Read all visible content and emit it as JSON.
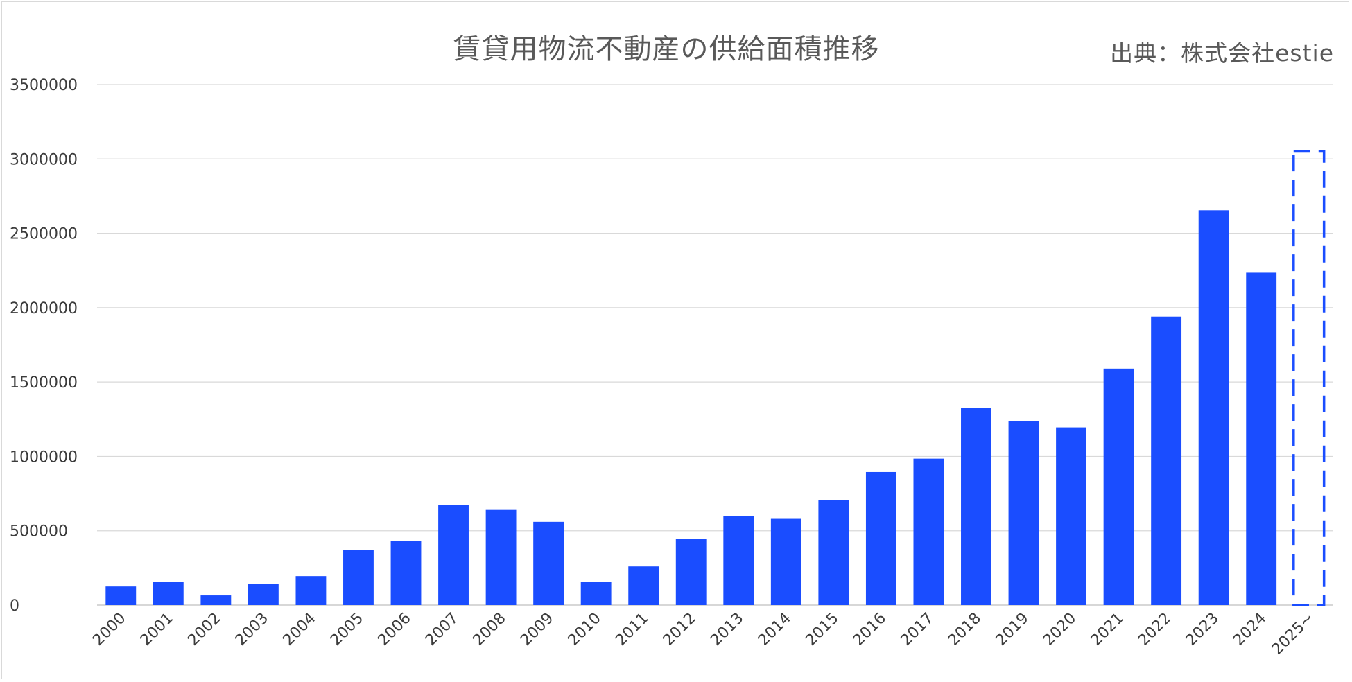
{
  "title": "賃貸用物流不動産の供給面積推移",
  "source": "出典：株式会社estie",
  "chart_data": {
    "type": "bar",
    "categories": [
      "2000",
      "2001",
      "2002",
      "2003",
      "2004",
      "2005",
      "2006",
      "2007",
      "2008",
      "2009",
      "2010",
      "2011",
      "2012",
      "2013",
      "2014",
      "2015",
      "2016",
      "2017",
      "2018",
      "2019",
      "2020",
      "2021",
      "2022",
      "2023",
      "2024",
      "2025~"
    ],
    "values": [
      125000,
      155000,
      65000,
      140000,
      195000,
      370000,
      430000,
      675000,
      640000,
      560000,
      155000,
      260000,
      445000,
      600000,
      580000,
      705000,
      895000,
      985000,
      1325000,
      1235000,
      1195000,
      1590000,
      1940000,
      2655000,
      2235000,
      3050000
    ],
    "highlight": {
      "category": "2025~",
      "style": "dashed-outline",
      "value": 3050000
    },
    "ylim": [
      0,
      3500000
    ],
    "yticks": [
      0,
      500000,
      1000000,
      1500000,
      2000000,
      2500000,
      3000000,
      3500000
    ],
    "xlabel": "",
    "ylabel": "",
    "grid": true,
    "legend": "none",
    "colors": {
      "bar": "#1a4dff",
      "outline": "#1a4dff",
      "grid": "#d9d9d9",
      "text": "#3c3c3c"
    }
  }
}
